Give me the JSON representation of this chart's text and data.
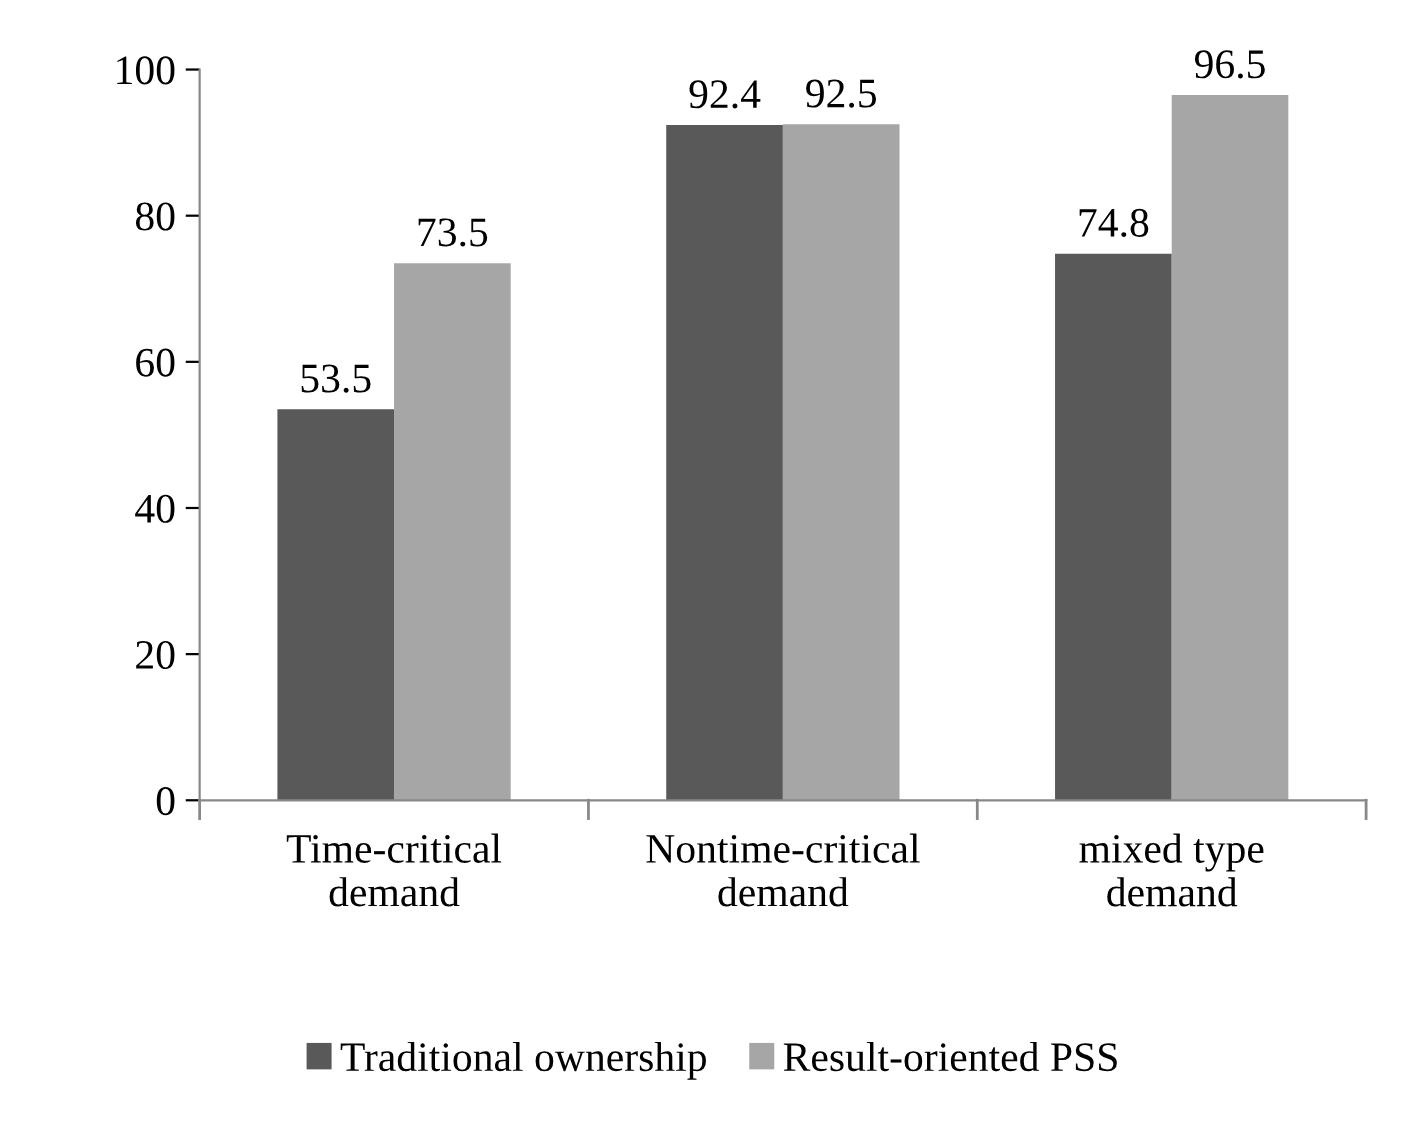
{
  "chart_data": {
    "type": "bar",
    "categories": [
      "Time-critical\ndemand",
      "Nontime-critical\ndemand",
      "mixed type\ndemand"
    ],
    "series": [
      {
        "name": "Traditional ownership",
        "color": "#595959",
        "values": [
          53.5,
          92.4,
          74.8
        ]
      },
      {
        "name": "Result-oriented PSS",
        "color": "#a6a6a6",
        "values": [
          73.5,
          92.5,
          96.5
        ]
      }
    ],
    "ylim": [
      0,
      100
    ],
    "yticks": [
      0,
      20,
      40,
      60,
      80,
      100
    ],
    "data_labels": true,
    "grid": false,
    "legend": "bottom"
  }
}
